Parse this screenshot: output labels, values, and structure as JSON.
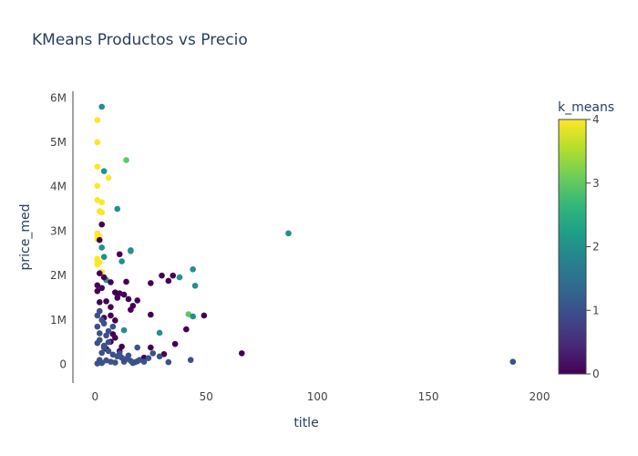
{
  "chart_data": {
    "type": "scatter",
    "title": "KMeans Productos vs Precio",
    "xlabel": "title",
    "ylabel": "price_med",
    "xlim": [
      -10,
      200
    ],
    "ylim": [
      -420000,
      6150000
    ],
    "x_ticks": [
      0,
      50,
      100,
      150,
      200
    ],
    "x_tick_labels": [
      "0",
      "50",
      "100",
      "150",
      "200"
    ],
    "y_ticks": [
      0,
      1000000,
      2000000,
      3000000,
      4000000,
      5000000,
      6000000
    ],
    "y_tick_labels": [
      "0",
      "1M",
      "2M",
      "3M",
      "4M",
      "5M",
      "6M"
    ],
    "grid": false,
    "colorbar": {
      "title": "k_means",
      "range": [
        0,
        4
      ],
      "ticks": [
        0,
        1,
        2,
        3,
        4
      ],
      "tick_labels": [
        "0",
        "1",
        "2",
        "3",
        "4"
      ],
      "colorscale": [
        "#440154",
        "#482878",
        "#3e4989",
        "#31688e",
        "#26828e",
        "#1f9e89",
        "#35b779",
        "#6ece58",
        "#b5de2b",
        "#fde725"
      ]
    },
    "points": [
      {
        "x": 1,
        "y": 5500000,
        "k": 4
      },
      {
        "x": 1,
        "y": 5000000,
        "k": 4
      },
      {
        "x": 1,
        "y": 4450000,
        "k": 4
      },
      {
        "x": 1,
        "y": 4020000,
        "k": 4
      },
      {
        "x": 1,
        "y": 3700000,
        "k": 4
      },
      {
        "x": 3,
        "y": 3650000,
        "k": 4
      },
      {
        "x": 2,
        "y": 3450000,
        "k": 4
      },
      {
        "x": 3,
        "y": 3420000,
        "k": 4
      },
      {
        "x": 1,
        "y": 2950000,
        "k": 4
      },
      {
        "x": 1,
        "y": 2900000,
        "k": 4
      },
      {
        "x": 2,
        "y": 2880000,
        "k": 4
      },
      {
        "x": 1,
        "y": 2820000,
        "k": 4
      },
      {
        "x": 1,
        "y": 2380000,
        "k": 4
      },
      {
        "x": 1,
        "y": 2330000,
        "k": 4
      },
      {
        "x": 2,
        "y": 2300000,
        "k": 4
      },
      {
        "x": 1,
        "y": 2250000,
        "k": 4
      },
      {
        "x": 6,
        "y": 4200000,
        "k": 4
      },
      {
        "x": 3,
        "y": 2080000,
        "k": 4
      },
      {
        "x": 3,
        "y": 5800000,
        "k": 2
      },
      {
        "x": 4,
        "y": 4350000,
        "k": 2
      },
      {
        "x": 14,
        "y": 4600000,
        "k": 3
      },
      {
        "x": 10,
        "y": 3500000,
        "k": 2
      },
      {
        "x": 87,
        "y": 2950000,
        "k": 2
      },
      {
        "x": 3,
        "y": 2630000,
        "k": 2
      },
      {
        "x": 16,
        "y": 2570000,
        "k": 2
      },
      {
        "x": 16,
        "y": 2550000,
        "k": 2
      },
      {
        "x": 4,
        "y": 2420000,
        "k": 2
      },
      {
        "x": 12,
        "y": 2320000,
        "k": 2
      },
      {
        "x": 44,
        "y": 2140000,
        "k": 2
      },
      {
        "x": 38,
        "y": 1960000,
        "k": 2
      },
      {
        "x": 45,
        "y": 1770000,
        "k": 2
      },
      {
        "x": 42,
        "y": 1130000,
        "k": 3
      },
      {
        "x": 44,
        "y": 1080000,
        "k": 2
      },
      {
        "x": 5,
        "y": 1900000,
        "k": 2
      },
      {
        "x": 13,
        "y": 770000,
        "k": 2
      },
      {
        "x": 29,
        "y": 710000,
        "k": 2
      },
      {
        "x": 3,
        "y": 3150000,
        "k": 0
      },
      {
        "x": 2,
        "y": 2800000,
        "k": 0
      },
      {
        "x": 11,
        "y": 2480000,
        "k": 0
      },
      {
        "x": 2,
        "y": 2050000,
        "k": 0
      },
      {
        "x": 30,
        "y": 2000000,
        "k": 0
      },
      {
        "x": 35,
        "y": 2000000,
        "k": 0
      },
      {
        "x": 4,
        "y": 1960000,
        "k": 0
      },
      {
        "x": 33,
        "y": 1880000,
        "k": 0
      },
      {
        "x": 14,
        "y": 1860000,
        "k": 0
      },
      {
        "x": 25,
        "y": 1830000,
        "k": 0
      },
      {
        "x": 7,
        "y": 1850000,
        "k": 0
      },
      {
        "x": 1,
        "y": 1780000,
        "k": 0
      },
      {
        "x": 3,
        "y": 1720000,
        "k": 0
      },
      {
        "x": 1,
        "y": 1650000,
        "k": 0
      },
      {
        "x": 9,
        "y": 1620000,
        "k": 0
      },
      {
        "x": 11,
        "y": 1600000,
        "k": 0
      },
      {
        "x": 13,
        "y": 1570000,
        "k": 0
      },
      {
        "x": 10,
        "y": 1500000,
        "k": 0
      },
      {
        "x": 15,
        "y": 1470000,
        "k": 0
      },
      {
        "x": 19,
        "y": 1440000,
        "k": 0
      },
      {
        "x": 5,
        "y": 1420000,
        "k": 0
      },
      {
        "x": 17,
        "y": 1320000,
        "k": 0
      },
      {
        "x": 7,
        "y": 1290000,
        "k": 0
      },
      {
        "x": 16,
        "y": 1230000,
        "k": 0
      },
      {
        "x": 25,
        "y": 1120000,
        "k": 0
      },
      {
        "x": 7,
        "y": 1100000,
        "k": 0
      },
      {
        "x": 49,
        "y": 1100000,
        "k": 0
      },
      {
        "x": 9,
        "y": 990000,
        "k": 0
      },
      {
        "x": 41,
        "y": 790000,
        "k": 0
      },
      {
        "x": 8,
        "y": 680000,
        "k": 0
      },
      {
        "x": 9,
        "y": 600000,
        "k": 0
      },
      {
        "x": 7,
        "y": 510000,
        "k": 0
      },
      {
        "x": 36,
        "y": 460000,
        "k": 0
      },
      {
        "x": 12,
        "y": 400000,
        "k": 0
      },
      {
        "x": 25,
        "y": 380000,
        "k": 0
      },
      {
        "x": 11,
        "y": 300000,
        "k": 0
      },
      {
        "x": 66,
        "y": 250000,
        "k": 0
      },
      {
        "x": 31,
        "y": 230000,
        "k": 0
      },
      {
        "x": 22,
        "y": 150000,
        "k": 0
      },
      {
        "x": 5,
        "y": 350000,
        "k": 0
      },
      {
        "x": 2,
        "y": 1400000,
        "k": 0
      },
      {
        "x": 4,
        "y": 1050000,
        "k": 0
      },
      {
        "x": 188,
        "y": 60000,
        "k": 1
      },
      {
        "x": 33,
        "y": 50000,
        "k": 1
      },
      {
        "x": 43,
        "y": 100000,
        "k": 1
      },
      {
        "x": 26,
        "y": 250000,
        "k": 1
      },
      {
        "x": 19,
        "y": 380000,
        "k": 1
      },
      {
        "x": 8,
        "y": 850000,
        "k": 1
      },
      {
        "x": 6,
        "y": 750000,
        "k": 1
      },
      {
        "x": 4,
        "y": 920000,
        "k": 1
      },
      {
        "x": 2,
        "y": 1200000,
        "k": 1
      },
      {
        "x": 1,
        "y": 1100000,
        "k": 1
      },
      {
        "x": 3,
        "y": 1000000,
        "k": 1
      },
      {
        "x": 5,
        "y": 650000,
        "k": 1
      },
      {
        "x": 2,
        "y": 550000,
        "k": 1
      },
      {
        "x": 1,
        "y": 480000,
        "k": 1
      },
      {
        "x": 4,
        "y": 420000,
        "k": 1
      },
      {
        "x": 6,
        "y": 300000,
        "k": 1
      },
      {
        "x": 3,
        "y": 260000,
        "k": 1
      },
      {
        "x": 8,
        "y": 220000,
        "k": 1
      },
      {
        "x": 10,
        "y": 180000,
        "k": 1
      },
      {
        "x": 12,
        "y": 150000,
        "k": 1
      },
      {
        "x": 14,
        "y": 120000,
        "k": 1
      },
      {
        "x": 16,
        "y": 80000,
        "k": 1
      },
      {
        "x": 18,
        "y": 50000,
        "k": 1
      },
      {
        "x": 20,
        "y": 100000,
        "k": 1
      },
      {
        "x": 22,
        "y": 60000,
        "k": 1
      },
      {
        "x": 9,
        "y": 40000,
        "k": 1
      },
      {
        "x": 7,
        "y": 60000,
        "k": 1
      },
      {
        "x": 5,
        "y": 90000,
        "k": 1
      },
      {
        "x": 3,
        "y": 30000,
        "k": 1
      },
      {
        "x": 1,
        "y": 20000,
        "k": 1
      },
      {
        "x": 2,
        "y": 700000,
        "k": 1
      },
      {
        "x": 1,
        "y": 850000,
        "k": 1
      },
      {
        "x": 11,
        "y": 250000,
        "k": 1
      },
      {
        "x": 15,
        "y": 200000,
        "k": 1
      },
      {
        "x": 24,
        "y": 140000,
        "k": 1
      },
      {
        "x": 29,
        "y": 180000,
        "k": 1
      },
      {
        "x": 6,
        "y": 500000,
        "k": 1
      },
      {
        "x": 4,
        "y": 380000,
        "k": 1
      },
      {
        "x": 2,
        "y": 100000,
        "k": 1
      },
      {
        "x": 13,
        "y": 60000,
        "k": 1
      },
      {
        "x": 17,
        "y": 30000,
        "k": 1
      },
      {
        "x": 19,
        "y": 70000,
        "k": 1
      }
    ]
  }
}
